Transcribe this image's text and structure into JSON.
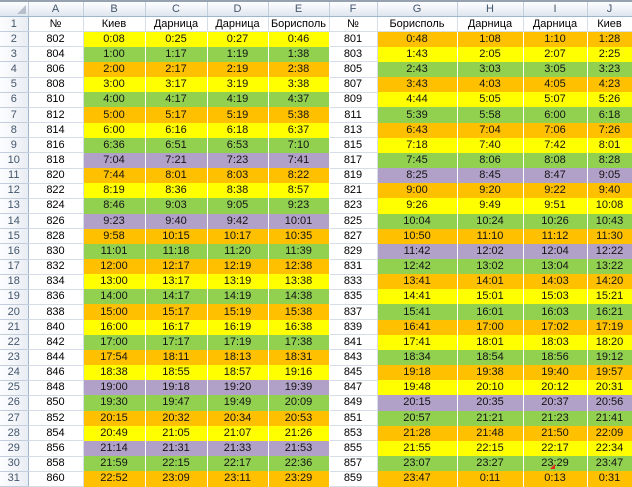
{
  "colors": {
    "yellow": "#FFFF00",
    "green": "#92D050",
    "orange": "#FFC000",
    "purple": "#B1A0C7",
    "gridline": "#D6DCE8",
    "header_border": "#9EB6CE",
    "header_text": "#44566B"
  },
  "grid": {
    "column_letters": [
      "A",
      "B",
      "C",
      "D",
      "E",
      "F",
      "G",
      "H",
      "I",
      "J"
    ],
    "first_row_number": 1,
    "last_row_number": 31
  },
  "timetable": {
    "left": {
      "headers": [
        "№",
        "Киев",
        "Дарница",
        "Дарница",
        "Борисполь"
      ],
      "rows": [
        {
          "no": "802",
          "times": [
            "0:08",
            "0:25",
            "0:27",
            "0:46"
          ],
          "fill": "yellow"
        },
        {
          "no": "804",
          "times": [
            "1:00",
            "1:17",
            "1:19",
            "1:38"
          ],
          "fill": "green"
        },
        {
          "no": "806",
          "times": [
            "2:00",
            "2:17",
            "2:19",
            "2:38"
          ],
          "fill": "orange"
        },
        {
          "no": "808",
          "times": [
            "3:00",
            "3:17",
            "3:19",
            "3:38"
          ],
          "fill": "yellow"
        },
        {
          "no": "810",
          "times": [
            "4:00",
            "4:17",
            "4:19",
            "4:37"
          ],
          "fill": "green"
        },
        {
          "no": "812",
          "times": [
            "5:00",
            "5:17",
            "5:19",
            "5:38"
          ],
          "fill": "orange"
        },
        {
          "no": "814",
          "times": [
            "6:00",
            "6:16",
            "6:18",
            "6:37"
          ],
          "fill": "yellow"
        },
        {
          "no": "816",
          "times": [
            "6:36",
            "6:51",
            "6:53",
            "7:10"
          ],
          "fill": "green"
        },
        {
          "no": "818",
          "times": [
            "7:04",
            "7:21",
            "7:23",
            "7:41"
          ],
          "fill": "purple"
        },
        {
          "no": "820",
          "times": [
            "7:44",
            "8:01",
            "8:03",
            "8:22"
          ],
          "fill": "orange"
        },
        {
          "no": "822",
          "times": [
            "8:19",
            "8:36",
            "8:38",
            "8:57"
          ],
          "fill": "yellow"
        },
        {
          "no": "824",
          "times": [
            "8:46",
            "9:03",
            "9:05",
            "9:23"
          ],
          "fill": "green"
        },
        {
          "no": "826",
          "times": [
            "9:23",
            "9:40",
            "9:42",
            "10:01"
          ],
          "fill": "purple"
        },
        {
          "no": "828",
          "times": [
            "9:58",
            "10:15",
            "10:17",
            "10:35"
          ],
          "fill": "orange"
        },
        {
          "no": "830",
          "times": [
            "11:01",
            "11:18",
            "11:20",
            "11:39"
          ],
          "fill": "green"
        },
        {
          "no": "832",
          "times": [
            "12:00",
            "12:17",
            "12:19",
            "12:38"
          ],
          "fill": "orange"
        },
        {
          "no": "834",
          "times": [
            "13:00",
            "13:17",
            "13:19",
            "13:38"
          ],
          "fill": "yellow"
        },
        {
          "no": "836",
          "times": [
            "14:00",
            "14:17",
            "14:19",
            "14:38"
          ],
          "fill": "green"
        },
        {
          "no": "838",
          "times": [
            "15:00",
            "15:17",
            "15:19",
            "15:38"
          ],
          "fill": "orange"
        },
        {
          "no": "840",
          "times": [
            "16:00",
            "16:17",
            "16:19",
            "16:38"
          ],
          "fill": "yellow"
        },
        {
          "no": "842",
          "times": [
            "17:00",
            "17:17",
            "17:19",
            "17:38"
          ],
          "fill": "green"
        },
        {
          "no": "844",
          "times": [
            "17:54",
            "18:11",
            "18:13",
            "18:31"
          ],
          "fill": "orange"
        },
        {
          "no": "846",
          "times": [
            "18:38",
            "18:55",
            "18:57",
            "19:16"
          ],
          "fill": "yellow"
        },
        {
          "no": "848",
          "times": [
            "19:00",
            "19:18",
            "19:20",
            "19:39"
          ],
          "fill": "purple"
        },
        {
          "no": "850",
          "times": [
            "19:30",
            "19:47",
            "19:49",
            "20:09"
          ],
          "fill": "green"
        },
        {
          "no": "852",
          "times": [
            "20:15",
            "20:32",
            "20:34",
            "20:53"
          ],
          "fill": "orange"
        },
        {
          "no": "854",
          "times": [
            "20:49",
            "21:05",
            "21:07",
            "21:26"
          ],
          "fill": "yellow"
        },
        {
          "no": "856",
          "times": [
            "21:14",
            "21:31",
            "21:33",
            "21:53"
          ],
          "fill": "purple"
        },
        {
          "no": "858",
          "times": [
            "21:59",
            "22:15",
            "22:17",
            "22:36"
          ],
          "fill": "green"
        },
        {
          "no": "860",
          "times": [
            "22:52",
            "23:09",
            "23:11",
            "23:29"
          ],
          "fill": "orange"
        }
      ]
    },
    "right": {
      "headers": [
        "№",
        "Борисполь",
        "Дарница",
        "Дарница",
        "Киев"
      ],
      "rows": [
        {
          "no": "801",
          "times": [
            "0:48",
            "1:08",
            "1:10",
            "1:28"
          ],
          "fill": "orange"
        },
        {
          "no": "803",
          "times": [
            "1:43",
            "2:05",
            "2:07",
            "2:25"
          ],
          "fill": "yellow"
        },
        {
          "no": "805",
          "times": [
            "2:43",
            "3:03",
            "3:05",
            "3:23"
          ],
          "fill": "green"
        },
        {
          "no": "807",
          "times": [
            "3:43",
            "4:03",
            "4:05",
            "4:23"
          ],
          "fill": "orange"
        },
        {
          "no": "809",
          "times": [
            "4:44",
            "5:05",
            "5:07",
            "5:26"
          ],
          "fill": "yellow"
        },
        {
          "no": "811",
          "times": [
            "5:39",
            "5:58",
            "6:00",
            "6:18"
          ],
          "fill": "green"
        },
        {
          "no": "813",
          "times": [
            "6:43",
            "7:04",
            "7:06",
            "7:26"
          ],
          "fill": "orange"
        },
        {
          "no": "815",
          "times": [
            "7:18",
            "7:40",
            "7:42",
            "8:01"
          ],
          "fill": "yellow"
        },
        {
          "no": "817",
          "times": [
            "7:45",
            "8:06",
            "8:08",
            "8:28"
          ],
          "fill": "green"
        },
        {
          "no": "819",
          "times": [
            "8:25",
            "8:45",
            "8:47",
            "9:05"
          ],
          "fill": "purple"
        },
        {
          "no": "821",
          "times": [
            "9:00",
            "9:20",
            "9:22",
            "9:40"
          ],
          "fill": "orange"
        },
        {
          "no": "823",
          "times": [
            "9:26",
            "9:49",
            "9:51",
            "10:08"
          ],
          "fill": "yellow"
        },
        {
          "no": "825",
          "times": [
            "10:04",
            "10:24",
            "10:26",
            "10:43"
          ],
          "fill": "green"
        },
        {
          "no": "827",
          "times": [
            "10:50",
            "11:10",
            "11:12",
            "11:30"
          ],
          "fill": "orange"
        },
        {
          "no": "829",
          "times": [
            "11:42",
            "12:02",
            "12:04",
            "12:22"
          ],
          "fill": "purple"
        },
        {
          "no": "831",
          "times": [
            "12:42",
            "13:02",
            "13:04",
            "13:22"
          ],
          "fill": "green"
        },
        {
          "no": "833",
          "times": [
            "13:41",
            "14:01",
            "14:03",
            "14:20"
          ],
          "fill": "orange"
        },
        {
          "no": "835",
          "times": [
            "14:41",
            "15:01",
            "15:03",
            "15:21"
          ],
          "fill": "yellow"
        },
        {
          "no": "837",
          "times": [
            "15:41",
            "16:01",
            "16:03",
            "16:21"
          ],
          "fill": "green"
        },
        {
          "no": "839",
          "times": [
            "16:41",
            "17:00",
            "17:02",
            "17:19"
          ],
          "fill": "orange"
        },
        {
          "no": "841",
          "times": [
            "17:41",
            "18:01",
            "18:03",
            "18:20"
          ],
          "fill": "yellow"
        },
        {
          "no": "843",
          "times": [
            "18:34",
            "18:54",
            "18:56",
            "19:12"
          ],
          "fill": "green"
        },
        {
          "no": "845",
          "times": [
            "19:18",
            "19:38",
            "19:40",
            "19:57"
          ],
          "fill": "orange"
        },
        {
          "no": "847",
          "times": [
            "19:48",
            "20:10",
            "20:12",
            "20:31"
          ],
          "fill": "yellow"
        },
        {
          "no": "849",
          "times": [
            "20:15",
            "20:35",
            "20:37",
            "20:56"
          ],
          "fill": "purple"
        },
        {
          "no": "851",
          "times": [
            "20:57",
            "21:21",
            "21:23",
            "21:41"
          ],
          "fill": "green"
        },
        {
          "no": "853",
          "times": [
            "21:28",
            "21:48",
            "21:50",
            "22:09"
          ],
          "fill": "orange"
        },
        {
          "no": "855",
          "times": [
            "21:55",
            "22:15",
            "22:17",
            "22:34"
          ],
          "fill": "yellow"
        },
        {
          "no": "857",
          "times": [
            "23:07",
            "23:27",
            "23:29",
            "23:47"
          ],
          "fill": "green",
          "marker_time_index": 2
        },
        {
          "no": "859",
          "times": [
            "23:47",
            "0:11",
            "0:13",
            "0:31"
          ],
          "fill": "orange"
        }
      ]
    }
  }
}
